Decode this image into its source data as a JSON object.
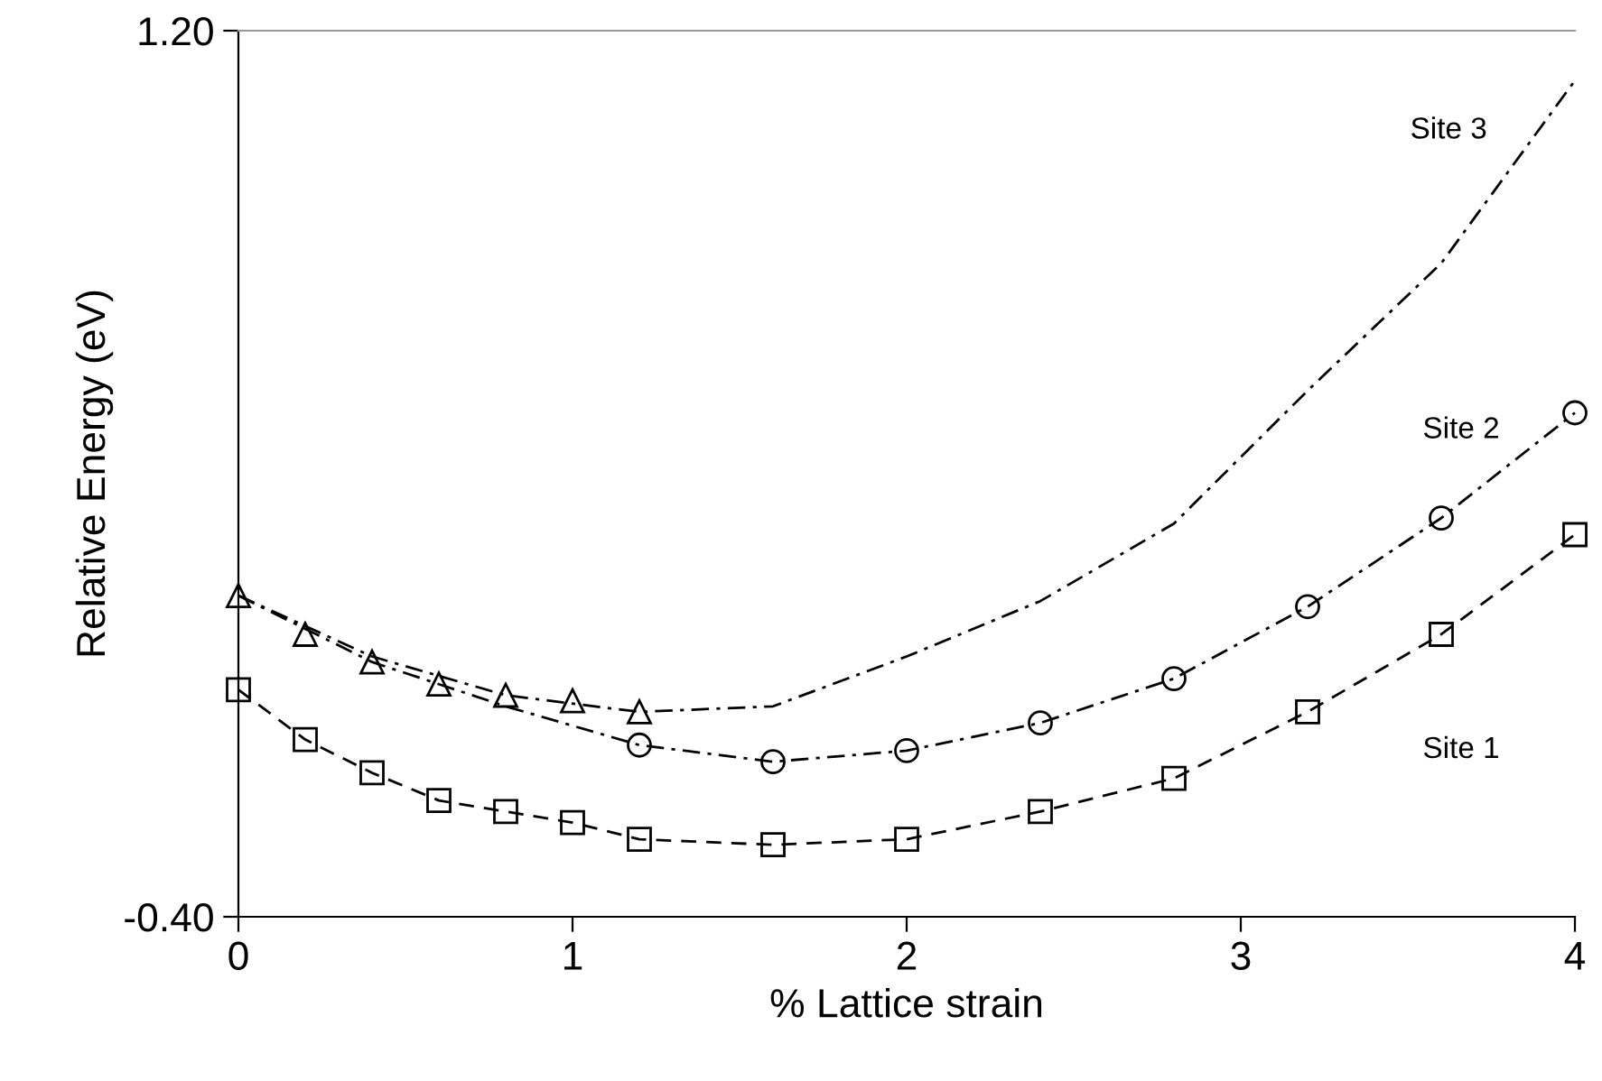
{
  "chart_data": {
    "type": "line",
    "xlabel": "% Lattice strain",
    "ylabel": "Relative Energy (eV)",
    "xlim": [
      0,
      4
    ],
    "xticks": [
      0,
      1,
      2,
      3,
      4
    ],
    "ylim": [
      -0.4,
      1.2
    ],
    "yticks": [
      {
        "value": -0.4,
        "label": "-0.40"
      },
      {
        "value": 1.2,
        "label": "1.20"
      }
    ],
    "grid": false,
    "legend": false,
    "series": [
      {
        "name": "Site 1",
        "color": "#000000",
        "marker": "square",
        "line_style": "dashed",
        "x": [
          0,
          0.2,
          0.4,
          0.6,
          0.8,
          1.0,
          1.2,
          1.6,
          2.0,
          2.4,
          2.8,
          3.2,
          3.6,
          4.0
        ],
        "values": [
          0.01,
          -0.08,
          -0.14,
          -0.19,
          -0.21,
          -0.23,
          -0.26,
          -0.27,
          -0.26,
          -0.21,
          -0.15,
          -0.03,
          0.11,
          0.29
        ]
      },
      {
        "name": "Site 2",
        "color": "#000000",
        "marker": "none",
        "line_style": "dashdot",
        "x": [
          0,
          0.4,
          0.8,
          1.2,
          1.6,
          2.0,
          2.4,
          2.8,
          3.2,
          3.6,
          4.0
        ],
        "values": [
          0.18,
          0.06,
          -0.02,
          -0.09,
          -0.12,
          -0.1,
          -0.05,
          0.03,
          0.16,
          0.32,
          0.51
        ]
      },
      {
        "color": "#000000",
        "type": "scatter",
        "marker": "circle",
        "x": [
          1.2,
          1.6,
          2.0,
          2.4,
          2.8,
          3.2,
          3.6,
          4.0
        ],
        "values": [
          -0.09,
          -0.12,
          -0.1,
          -0.05,
          0.03,
          0.16,
          0.32,
          0.51
        ]
      },
      {
        "name": "Site 3",
        "color": "#000000",
        "marker": "none",
        "line_style": "dashdot",
        "x": [
          0,
          0.4,
          0.8,
          1.2,
          1.6,
          2.0,
          2.4,
          2.8,
          3.2,
          3.6,
          4.0
        ],
        "values": [
          0.18,
          0.07,
          0.0,
          -0.03,
          -0.02,
          0.07,
          0.17,
          0.31,
          0.55,
          0.78,
          1.11
        ]
      },
      {
        "color": "#000000",
        "type": "scatter",
        "marker": "triangle",
        "x": [
          0,
          0.2,
          0.4,
          0.6,
          0.8,
          1.0,
          1.2
        ],
        "values": [
          0.18,
          0.11,
          0.06,
          0.02,
          0.0,
          -0.01,
          -0.03
        ]
      }
    ]
  }
}
